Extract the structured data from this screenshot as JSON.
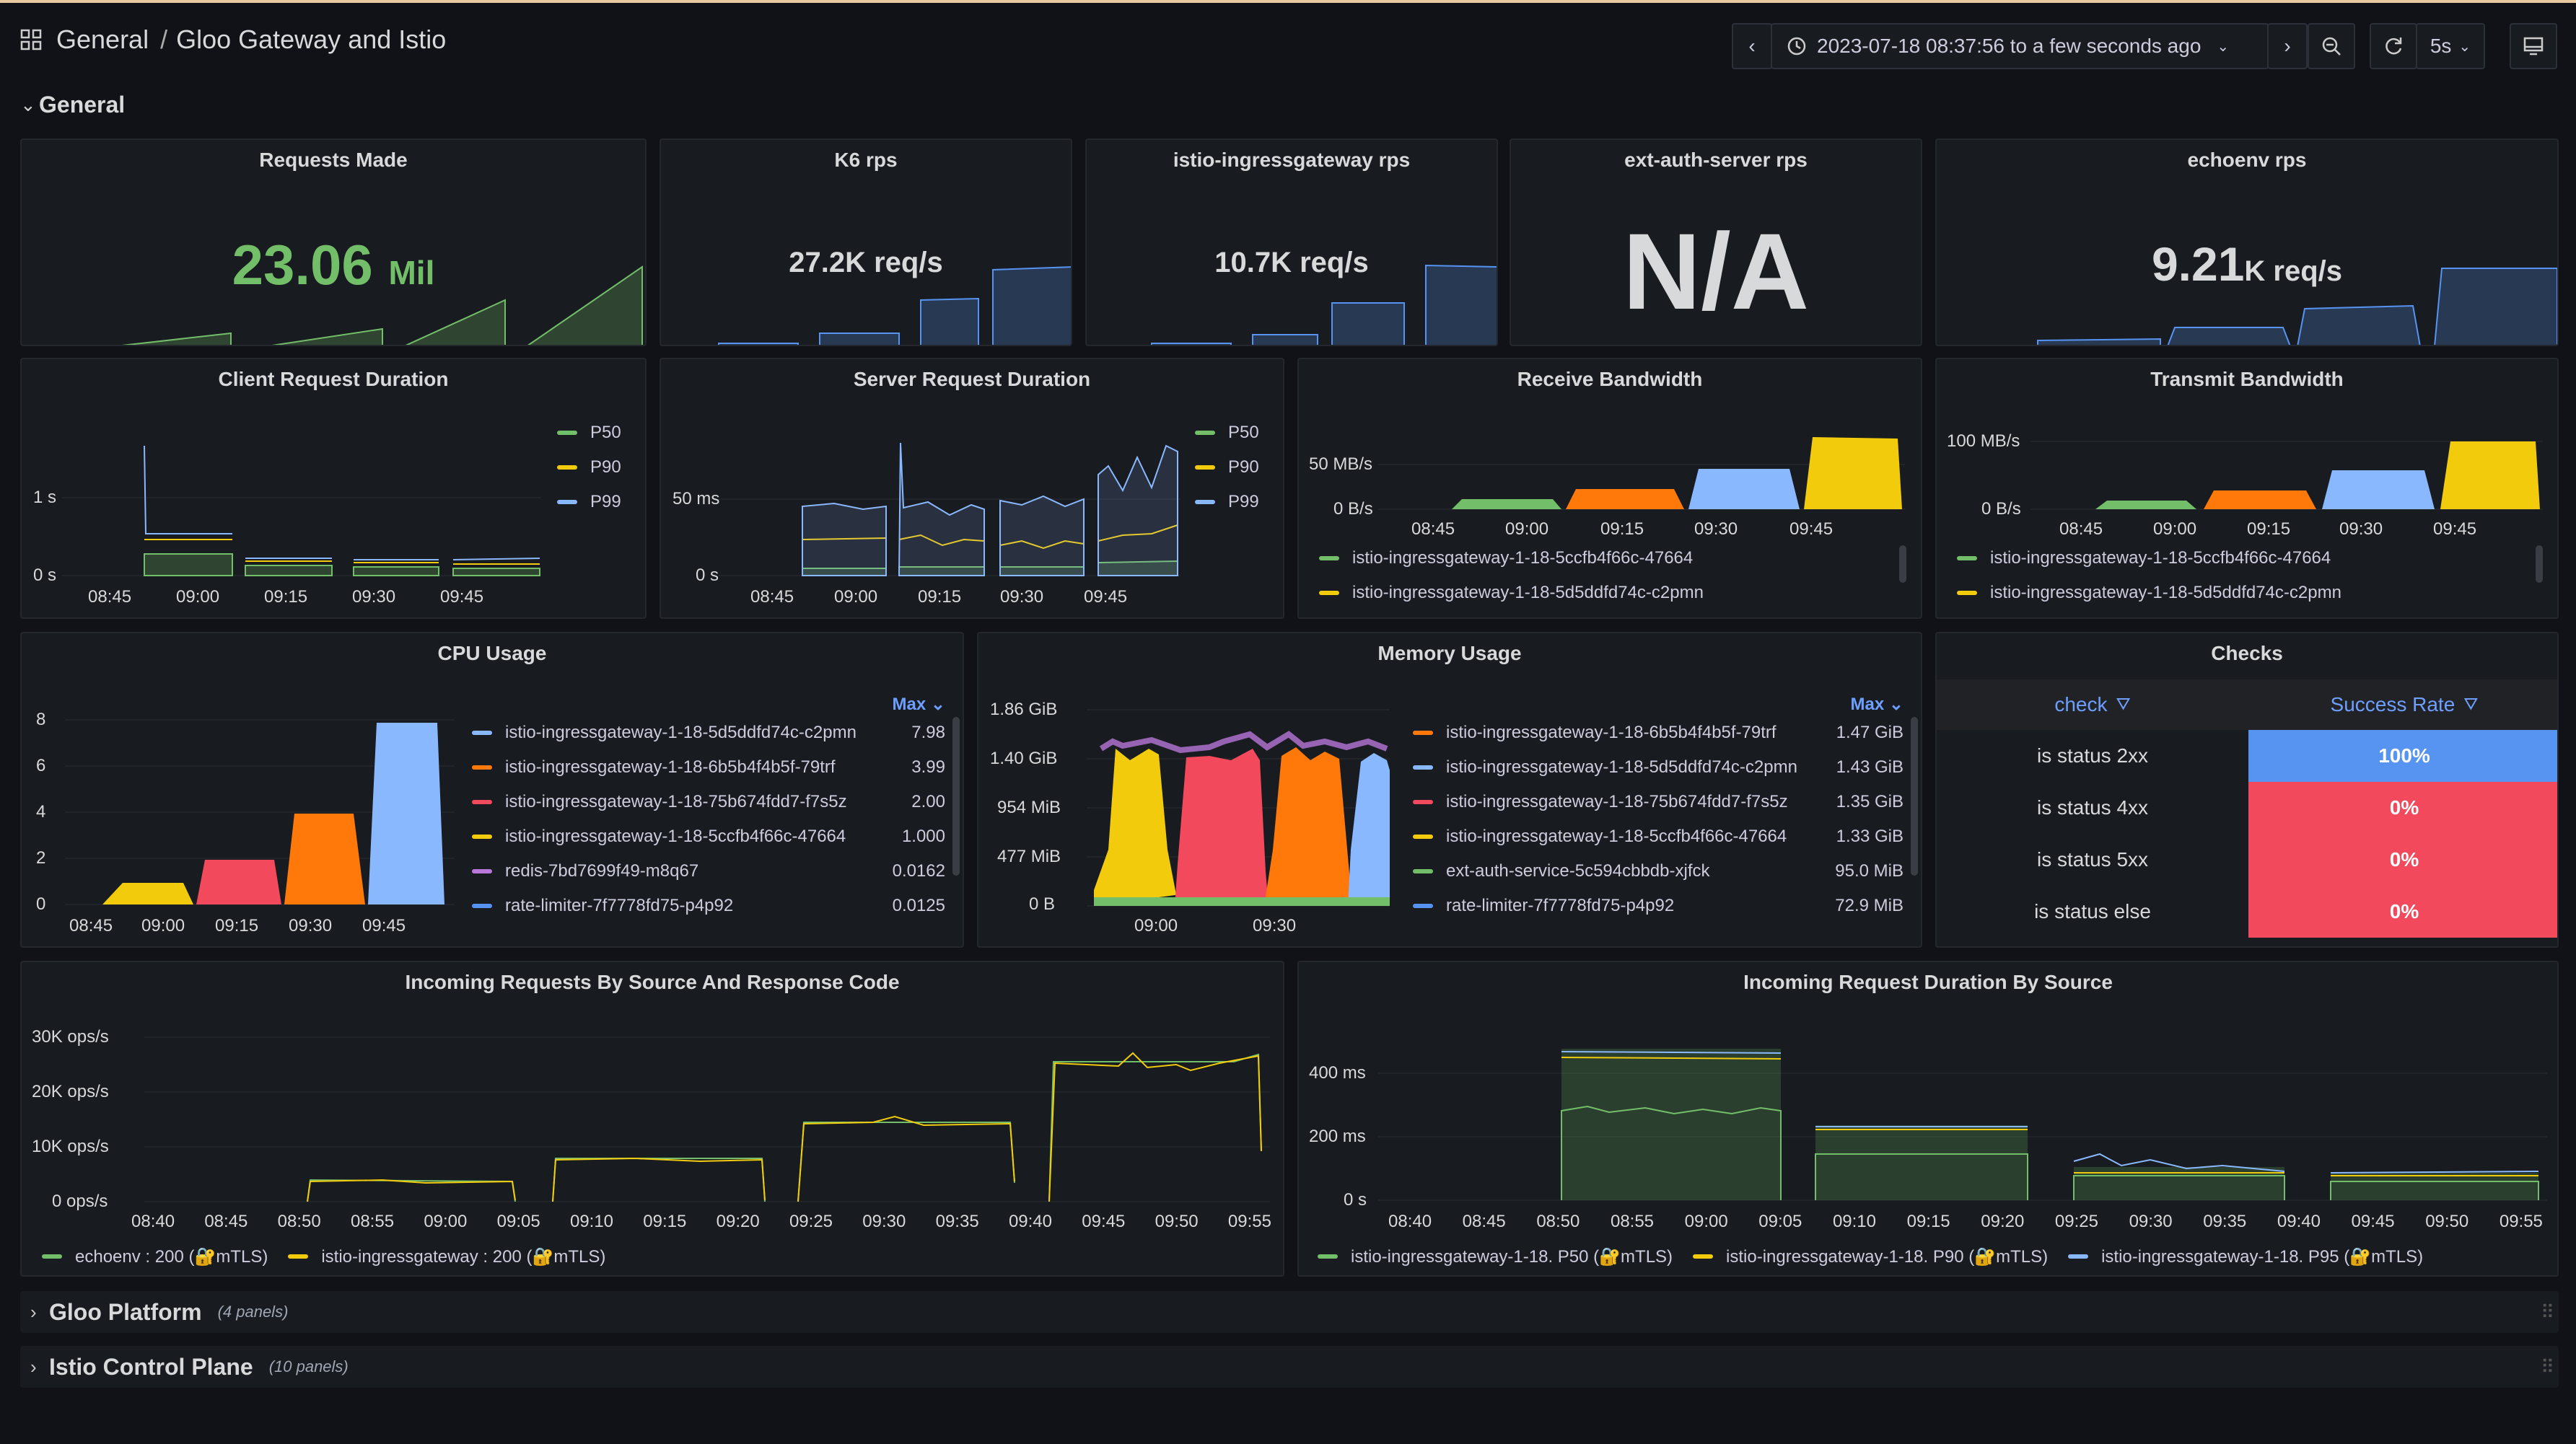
{
  "header": {
    "apps_icon": "apps-grid-icon",
    "folder": "General",
    "separator": "/",
    "title": "Gloo Gateway and Istio",
    "time_range": "2023-07-18 08:37:56 to a few seconds ago",
    "refresh_interval": "5s"
  },
  "rows": [
    {
      "title": "General"
    },
    {
      "title": "Gloo Platform",
      "sub": "(4 panels)"
    },
    {
      "title": "Istio Control Plane",
      "sub": "(10 panels)"
    }
  ],
  "colors": {
    "green": "#73bf69",
    "yellow": "#f2cc0c",
    "blue": "#8ab8ff",
    "orange": "#ff780a",
    "red": "#f2495c",
    "purple": "#b877d9",
    "panel_bg": "#181b1f"
  },
  "stats": [
    {
      "title": "Requests Made",
      "value": "23.06",
      "unit": "Mil",
      "color": "#73bf69"
    },
    {
      "title": "K6 rps",
      "value": "27.2K req/s",
      "unit": "",
      "color": "#d8d9da"
    },
    {
      "title": "istio-ingressgateway rps",
      "value": "10.7K req/s",
      "unit": "",
      "color": "#d8d9da"
    },
    {
      "title": "ext-auth-server rps",
      "value": "N/A",
      "unit": "",
      "color": "#d8d9da"
    },
    {
      "title": "echoenv rps",
      "value": "9.21",
      "unit": "K req/s",
      "color": "#d8d9da"
    }
  ],
  "client_duration": {
    "title": "Client Request Duration",
    "y_ticks": [
      "1 s",
      "0 s"
    ],
    "x_ticks": [
      "08:45",
      "09:00",
      "09:15",
      "09:30",
      "09:45"
    ],
    "legend": [
      "P50",
      "P90",
      "P99"
    ]
  },
  "server_duration": {
    "title": "Server Request Duration",
    "y_ticks": [
      "50 ms",
      "0 s"
    ],
    "x_ticks": [
      "08:45",
      "09:00",
      "09:15",
      "09:30",
      "09:45"
    ],
    "legend": [
      "P50",
      "P90",
      "P99"
    ]
  },
  "receive_bw": {
    "title": "Receive Bandwidth",
    "y_ticks": [
      "50 MB/s",
      "0 B/s"
    ],
    "x_ticks": [
      "08:45",
      "09:00",
      "09:15",
      "09:30",
      "09:45"
    ],
    "legend": [
      "istio-ingressgateway-1-18-5ccfb4f66c-47664",
      "istio-ingressgateway-1-18-5d5ddfd74c-c2pmn"
    ]
  },
  "transmit_bw": {
    "title": "Transmit Bandwidth",
    "y_ticks": [
      "100 MB/s",
      "0 B/s"
    ],
    "x_ticks": [
      "08:45",
      "09:00",
      "09:15",
      "09:30",
      "09:45"
    ],
    "legend": [
      "istio-ingressgateway-1-18-5ccfb4f66c-47664",
      "istio-ingressgateway-1-18-5d5ddfd74c-c2pmn"
    ]
  },
  "cpu": {
    "title": "CPU Usage",
    "y_ticks": [
      "8",
      "6",
      "4",
      "2",
      "0"
    ],
    "x_ticks": [
      "08:45",
      "09:00",
      "09:15",
      "09:30",
      "09:45"
    ],
    "legend_header": "Max",
    "legend": [
      {
        "name": "istio-ingressgateway-1-18-5d5ddfd74c-c2pmn",
        "value": "7.98"
      },
      {
        "name": "istio-ingressgateway-1-18-6b5b4f4b5f-79trf",
        "value": "3.99"
      },
      {
        "name": "istio-ingressgateway-1-18-75b674fdd7-f7s5z",
        "value": "2.00"
      },
      {
        "name": "istio-ingressgateway-1-18-5ccfb4f66c-47664",
        "value": "1.000"
      },
      {
        "name": "redis-7bd7699f49-m8q67",
        "value": "0.0162"
      },
      {
        "name": "rate-limiter-7f7778fd75-p4p92",
        "value": "0.0125"
      }
    ]
  },
  "memory": {
    "title": "Memory Usage",
    "y_ticks": [
      "1.86 GiB",
      "1.40 GiB",
      "954 MiB",
      "477 MiB",
      "0 B"
    ],
    "x_ticks": [
      "09:00",
      "09:30"
    ],
    "legend_header": "Max",
    "legend": [
      {
        "name": "istio-ingressgateway-1-18-6b5b4f4b5f-79trf",
        "value": "1.47 GiB"
      },
      {
        "name": "istio-ingressgateway-1-18-5d5ddfd74c-c2pmn",
        "value": "1.43 GiB"
      },
      {
        "name": "istio-ingressgateway-1-18-75b674fdd7-f7s5z",
        "value": "1.35 GiB"
      },
      {
        "name": "istio-ingressgateway-1-18-5ccfb4f66c-47664",
        "value": "1.33 GiB"
      },
      {
        "name": "ext-auth-service-5c594cbbdb-xjfck",
        "value": "95.0 MiB"
      },
      {
        "name": "rate-limiter-7f7778fd75-p4p92",
        "value": "72.9 MiB"
      }
    ]
  },
  "checks": {
    "title": "Checks",
    "col1": "check",
    "col2": "Success Rate",
    "rows": [
      {
        "check": "is status 2xx",
        "rate": "100%"
      },
      {
        "check": "is status 4xx",
        "rate": "0%"
      },
      {
        "check": "is status 5xx",
        "rate": "0%"
      },
      {
        "check": "is status else",
        "rate": "0%"
      }
    ]
  },
  "incoming_req": {
    "title": "Incoming Requests By Source And Response Code",
    "y_ticks": [
      "30K ops/s",
      "20K ops/s",
      "10K ops/s",
      "0 ops/s"
    ],
    "x_ticks": [
      "08:40",
      "08:45",
      "08:50",
      "08:55",
      "09:00",
      "09:05",
      "09:10",
      "09:15",
      "09:20",
      "09:25",
      "09:30",
      "09:35",
      "09:40",
      "09:45",
      "09:50",
      "09:55"
    ],
    "legend": [
      "echoenv : 200 (🔐mTLS)",
      "istio-ingressgateway : 200 (🔐mTLS)"
    ]
  },
  "incoming_dur": {
    "title": "Incoming Request Duration By Source",
    "y_ticks": [
      "400 ms",
      "200 ms",
      "0 s"
    ],
    "x_ticks": [
      "08:40",
      "08:45",
      "08:50",
      "08:55",
      "09:00",
      "09:05",
      "09:10",
      "09:15",
      "09:20",
      "09:25",
      "09:30",
      "09:35",
      "09:40",
      "09:45",
      "09:50",
      "09:55"
    ],
    "legend": [
      "istio-ingressgateway-1-18. P50 (🔐mTLS)",
      "istio-ingressgateway-1-18. P90 (🔐mTLS)",
      "istio-ingressgateway-1-18. P95 (🔐mTLS)"
    ]
  }
}
